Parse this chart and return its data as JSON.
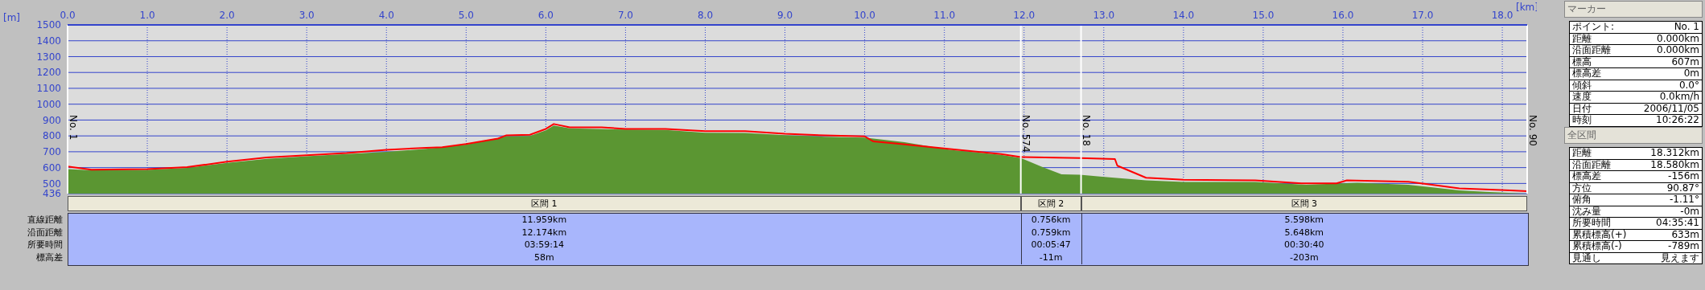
{
  "chart_data": [
    {
      "type": "area",
      "xlabel": "[km]",
      "ylabel": "[m]",
      "xlim": [
        0,
        18.312
      ],
      "ylim": [
        436,
        1500
      ],
      "xticks": [
        {
          "value": 0,
          "label": "0.0"
        },
        {
          "value": 1,
          "label": "1.0"
        },
        {
          "value": 2,
          "label": "2.0"
        },
        {
          "value": 3,
          "label": "3.0"
        },
        {
          "value": 4,
          "label": "4.0"
        },
        {
          "value": 5,
          "label": "5.0"
        },
        {
          "value": 6,
          "label": "6.0"
        },
        {
          "value": 7,
          "label": "7.0"
        },
        {
          "value": 8,
          "label": "8.0"
        },
        {
          "value": 9,
          "label": "9.0"
        },
        {
          "value": 10,
          "label": "10.0"
        },
        {
          "value": 11,
          "label": "11.0"
        },
        {
          "value": 12,
          "label": "12.0"
        },
        {
          "value": 13,
          "label": "13.0"
        },
        {
          "value": 14,
          "label": "14.0"
        },
        {
          "value": 15,
          "label": "15.0"
        },
        {
          "value": 16,
          "label": "16.0"
        },
        {
          "value": 17,
          "label": "17.0"
        },
        {
          "value": 18,
          "label": "18.0"
        }
      ],
      "yticks": [
        436,
        500,
        600,
        700,
        800,
        900,
        1000,
        1100,
        1200,
        1300,
        1400,
        1500
      ],
      "grid": true,
      "series": [
        {
          "type": "area",
          "color": "#5b9632",
          "x": [
            0,
            0.3,
            1.0,
            1.5,
            2.0,
            2.5,
            3.0,
            3.5,
            4.0,
            4.5,
            5.0,
            5.5,
            5.8,
            6.0,
            6.1,
            6.3,
            7.0,
            7.5,
            8.0,
            8.5,
            9.0,
            9.5,
            10.0,
            10.5,
            11.07,
            11.71,
            11.96,
            12.22,
            12.47,
            12.7,
            12.98,
            13.53,
            14.0,
            14.9,
            15.54,
            16.18,
            16.82,
            17.46,
            17.78,
            18.312
          ],
          "values": [
            590,
            583,
            585,
            598,
            630,
            655,
            672,
            685,
            700,
            718,
            745,
            797,
            800,
            835,
            865,
            848,
            840,
            838,
            820,
            818,
            805,
            795,
            790,
            760,
            712,
            680,
            660,
            606,
            558,
            555,
            542,
            520,
            510,
            510,
            492,
            504,
            492,
            456,
            447,
            436
          ]
        },
        {
          "type": "line",
          "color": "#ff0000",
          "x": [
            0,
            0.3,
            1.0,
            1.5,
            2.0,
            2.5,
            3.0,
            3.5,
            4.0,
            4.5,
            4.7,
            5.0,
            5.4,
            5.5,
            5.8,
            6.0,
            6.1,
            6.3,
            6.7,
            7.0,
            7.5,
            8.0,
            8.5,
            9.0,
            9.5,
            10.0,
            10.11,
            10.43,
            11.07,
            11.71,
            11.96,
            12.7,
            13.14,
            13.17,
            13.53,
            14.0,
            14.9,
            15.48,
            15.92,
            16.05,
            16.82,
            17.46,
            18.1,
            18.312
          ],
          "values": [
            607,
            587,
            590,
            603,
            637,
            664,
            678,
            692,
            712,
            725,
            729,
            749,
            783,
            803,
            807,
            844,
            875,
            854,
            854,
            844,
            844,
            830,
            830,
            813,
            803,
            797,
            765,
            750,
            717,
            686,
            667,
            660,
            654,
            612,
            536,
            523,
            520,
            501,
            501,
            520,
            511,
            469,
            456,
            451
          ]
        }
      ],
      "ref_lines": [
        {
          "axis": "x",
          "value": 0,
          "label": "No. 1",
          "color": "#ffffff"
        },
        {
          "axis": "x",
          "value": 11.959,
          "label": "No. 574",
          "color": "#ffffff"
        },
        {
          "axis": "x",
          "value": 12.715,
          "label": "No. 18",
          "color": "#ffffff"
        },
        {
          "axis": "x",
          "value": 18.312,
          "label": "No. 90",
          "color": "#ffffff"
        }
      ]
    },
    {
      "type": "other",
      "annotations": [
        "区間 1",
        "区間 2",
        "区間 3",
        "直線距離",
        "11.959km",
        "0.756km",
        "5.598km",
        "沿面距離",
        "12.174km",
        "0.759km",
        "5.648km",
        "所要時間",
        "03:59:14",
        "00:05:47",
        "00:30:40",
        "標高差",
        "58m",
        "-11m",
        "-203m"
      ]
    },
    {
      "type": "other",
      "title": "マーカー",
      "annotations": [
        "ポイント:",
        "No. 1",
        "距離",
        "0.000km",
        "沿面距離",
        "0.000km",
        "標高",
        "607m",
        "標高差",
        "0m",
        "傾斜",
        "0.0°",
        "速度",
        "0.0km/h",
        "日付",
        "2006/11/05",
        "時刻",
        "10:26:22"
      ]
    },
    {
      "type": "other",
      "title": "全区間",
      "annotations": [
        "距離",
        "18.312km",
        "沿面距離",
        "18.580km",
        "標高差",
        "-156m",
        "方位",
        "90.87°",
        "俯角",
        "-1.11°",
        "沈み量",
        "-0m",
        "所要時間",
        "04:35:41",
        "累積標高(+)",
        "633m",
        "累積標高(-)",
        "-789m",
        "見通し",
        "見えます"
      ]
    }
  ]
}
